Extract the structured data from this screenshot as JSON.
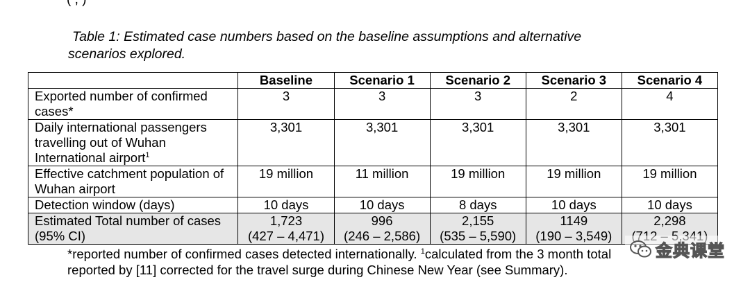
{
  "top_fragment": "(                ,              )",
  "caption": {
    "line1": "Table 1: Estimated case numbers based on the baseline assumptions and alternative",
    "line2": "scenarios explored."
  },
  "table": {
    "headers": [
      "",
      "Baseline",
      "Scenario 1",
      "Scenario 2",
      "Scenario 3",
      "Scenario 4"
    ],
    "rows": [
      {
        "label": "Exported number of confirmed cases*",
        "cells": [
          "3",
          "3",
          "3",
          "2",
          "4"
        ]
      },
      {
        "label": "Daily international passengers travelling out of Wuhan International airport",
        "label_sup": "1",
        "cells": [
          "3,301",
          "3,301",
          "3,301",
          "3,301",
          "3,301"
        ]
      },
      {
        "label": "Effective catchment population of Wuhan airport",
        "cells": [
          "19 million",
          "11 million",
          "19 million",
          "19 million",
          "19 million"
        ]
      },
      {
        "label": "Detection window (days)",
        "cells": [
          "10 days",
          "10 days",
          "8 days",
          "10 days",
          "10 days"
        ]
      },
      {
        "label": "Estimated Total number of cases (95% CI)",
        "shaded": true,
        "cells": [
          {
            "value": "1,723",
            "ci": "(427 – 4,471)"
          },
          {
            "value": "996",
            "ci": "(246 – 2,586)"
          },
          {
            "value": "2,155",
            "ci": "(535 – 5,590)"
          },
          {
            "value": "1149",
            "ci": "(190 – 3,549)"
          },
          {
            "value": "2,298",
            "ci": "(712 – 5,341)"
          }
        ]
      }
    ]
  },
  "footnote": {
    "line1_a": "*reported number of confirmed cases detected internationally. ",
    "line1_sup": "1",
    "line1_b": "calculated from the 3 month total",
    "line2": "reported by [11] corrected for the travel surge during Chinese New Year (see Summary)."
  },
  "watermark": {
    "text": "金典课堂",
    "icon": "wechat-icon",
    "color": "#555555"
  }
}
